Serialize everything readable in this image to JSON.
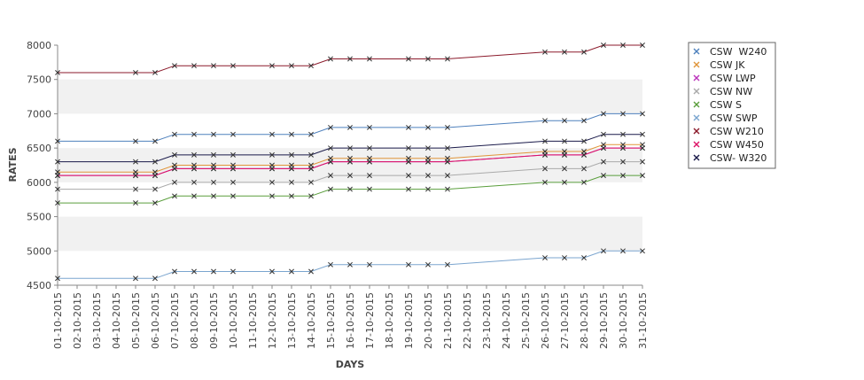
{
  "chart_data": {
    "type": "line",
    "xlabel": "DAYS",
    "ylabel": "RATES",
    "ylim": [
      4500,
      8000
    ],
    "yticks": [
      4500,
      5000,
      5500,
      6000,
      6500,
      7000,
      7500,
      8000
    ],
    "grid": false,
    "alternating_bands": true,
    "legend_position": "right",
    "categories": [
      "01-10-2015",
      "02-10-2015",
      "03-10-2015",
      "04-10-2015",
      "05-10-2015",
      "06-10-2015",
      "07-10-2015",
      "08-10-2015",
      "09-10-2015",
      "10-10-2015",
      "11-10-2015",
      "12-10-2015",
      "13-10-2015",
      "14-10-2015",
      "15-10-2015",
      "16-10-2015",
      "17-10-2015",
      "18-10-2015",
      "19-10-2015",
      "20-10-2015",
      "21-10-2015",
      "22-10-2015",
      "23-10-2015",
      "24-10-2015",
      "25-10-2015",
      "26-10-2015",
      "27-10-2015",
      "28-10-2015",
      "29-10-2015",
      "30-10-2015",
      "31-10-2015"
    ],
    "series": [
      {
        "name": "CSW  W240",
        "color": "#4f81bd",
        "values": [
          6600,
          null,
          null,
          null,
          6600,
          6600,
          6700,
          6700,
          6700,
          6700,
          null,
          6700,
          6700,
          6700,
          6800,
          6800,
          6800,
          null,
          6800,
          6800,
          6800,
          null,
          null,
          null,
          null,
          6900,
          6900,
          6900,
          7000,
          7000,
          7000
        ]
      },
      {
        "name": "CSW JK",
        "color": "#e0953a",
        "values": [
          6150,
          null,
          null,
          null,
          6150,
          6150,
          6250,
          6250,
          6250,
          6250,
          null,
          6250,
          6250,
          6250,
          6350,
          6350,
          6350,
          null,
          6350,
          6350,
          6350,
          null,
          null,
          null,
          null,
          6450,
          6450,
          6450,
          6550,
          6550,
          6550
        ]
      },
      {
        "name": "CSW LWP",
        "color": "#bb33bb",
        "values": [
          6100,
          null,
          null,
          null,
          6100,
          6100,
          6200,
          6200,
          6200,
          6200,
          null,
          6200,
          6200,
          6200,
          6300,
          6300,
          6300,
          null,
          6300,
          6300,
          6300,
          null,
          null,
          null,
          null,
          6400,
          6400,
          6400,
          6500,
          6500,
          6500
        ]
      },
      {
        "name": "CSW NW",
        "color": "#aaaaaa",
        "values": [
          5900,
          null,
          null,
          null,
          5900,
          5900,
          6000,
          6000,
          6000,
          6000,
          null,
          6000,
          6000,
          6000,
          6100,
          6100,
          6100,
          null,
          6100,
          6100,
          6100,
          null,
          null,
          null,
          null,
          6200,
          6200,
          6200,
          6300,
          6300,
          6300
        ]
      },
      {
        "name": "CSW S",
        "color": "#5a9e3c",
        "values": [
          5700,
          null,
          null,
          null,
          5700,
          5700,
          5800,
          5800,
          5800,
          5800,
          null,
          5800,
          5800,
          5800,
          5900,
          5900,
          5900,
          null,
          5900,
          5900,
          5900,
          null,
          null,
          null,
          null,
          6000,
          6000,
          6000,
          6100,
          6100,
          6100
        ]
      },
      {
        "name": "CSW SWP",
        "color": "#7ba5cf",
        "values": [
          4600,
          null,
          null,
          null,
          4600,
          4600,
          4700,
          4700,
          4700,
          4700,
          null,
          4700,
          4700,
          4700,
          4800,
          4800,
          4800,
          null,
          4800,
          4800,
          4800,
          null,
          null,
          null,
          null,
          4900,
          4900,
          4900,
          5000,
          5000,
          5000
        ]
      },
      {
        "name": "CSW W210",
        "color": "#8b1a2b",
        "values": [
          7600,
          null,
          null,
          null,
          7600,
          7600,
          7700,
          7700,
          7700,
          7700,
          null,
          7700,
          7700,
          7700,
          7800,
          7800,
          7800,
          null,
          7800,
          7800,
          7800,
          null,
          null,
          null,
          null,
          7900,
          7900,
          7900,
          8000,
          8000,
          8000
        ]
      },
      {
        "name": "CSW W450",
        "color": "#dd1166",
        "values": [
          6100,
          null,
          null,
          null,
          6100,
          6100,
          6200,
          6200,
          6200,
          6200,
          null,
          6200,
          6200,
          6200,
          6300,
          6300,
          6300,
          null,
          6300,
          6300,
          6300,
          null,
          null,
          null,
          null,
          6400,
          6400,
          6400,
          6500,
          6500,
          6500
        ]
      },
      {
        "name": "CSW- W320",
        "color": "#1a1a4a",
        "values": [
          6300,
          null,
          null,
          null,
          6300,
          6300,
          6400,
          6400,
          6400,
          6400,
          null,
          6400,
          6400,
          6400,
          6500,
          6500,
          6500,
          null,
          6500,
          6500,
          6500,
          null,
          null,
          null,
          null,
          6600,
          6600,
          6600,
          6700,
          6700,
          6700
        ]
      }
    ]
  }
}
